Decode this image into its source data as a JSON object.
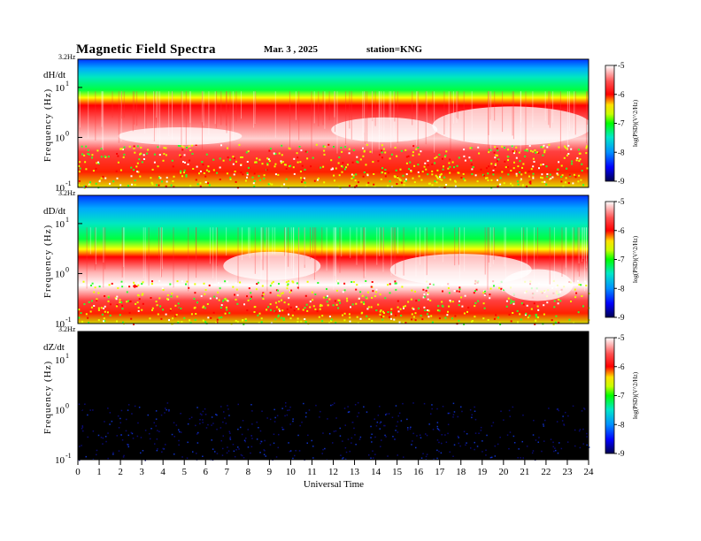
{
  "header": {
    "title": "Magnetic  Field  Spectra",
    "date": "Mar. 3   , 2025",
    "station": "station=KNG"
  },
  "colors": {
    "background": "#ffffff",
    "quiet_panel": "#000000",
    "colormap": [
      "#000066",
      "#0000ff",
      "#00a0ff",
      "#00e0c0",
      "#00ff00",
      "#ffff00",
      "#ff0000",
      "#ffffff"
    ]
  },
  "chart_data": [
    {
      "type": "heatmap",
      "panel_label": "dH/dt",
      "ylabel": "Frequency  (Hz)",
      "top_label": "3.2Hz",
      "y_ticks": [
        "10",
        "10",
        "10"
      ],
      "y_tick_exponents": [
        "1",
        "0",
        "-1"
      ],
      "x_range": [
        0,
        24
      ],
      "colorbar": {
        "range": [
          -9,
          -5
        ],
        "ticks": [
          "-5",
          "-6",
          "-7",
          "-8",
          "-9"
        ],
        "label": "log(PSD)(V^2/Hz)"
      }
    },
    {
      "type": "heatmap",
      "panel_label": "dD/dt",
      "ylabel": "Frequency  (Hz)",
      "top_label": "3.2Hz",
      "y_ticks": [
        "10",
        "10",
        "10"
      ],
      "y_tick_exponents": [
        "1",
        "0",
        "-1"
      ],
      "x_range": [
        0,
        24
      ],
      "colorbar": {
        "range": [
          -9,
          -5
        ],
        "ticks": [
          "-5",
          "-6",
          "-7",
          "-8",
          "-9"
        ],
        "label": "log(PSD)(V^2/Hz)"
      }
    },
    {
      "type": "heatmap",
      "panel_label": "dZ/dt",
      "ylabel": "Frequency  (Hz)",
      "top_label": "3.2Hz",
      "y_ticks": [
        "10",
        "10",
        "10"
      ],
      "y_tick_exponents": [
        "1",
        "0",
        "-1"
      ],
      "x_range": [
        0,
        24
      ],
      "colorbar": {
        "range": [
          -9,
          -5
        ],
        "ticks": [
          "-5",
          "-6",
          "-7",
          "-8",
          "-9"
        ],
        "label": "log(PSD)(V^2/Hz)"
      }
    }
  ],
  "x_axis": {
    "label": "Universal Time",
    "ticks": [
      "0",
      "1",
      "2",
      "3",
      "4",
      "5",
      "6",
      "7",
      "8",
      "9",
      "10",
      "11",
      "12",
      "13",
      "14",
      "15",
      "16",
      "17",
      "18",
      "19",
      "20",
      "21",
      "22",
      "23",
      "24"
    ]
  }
}
